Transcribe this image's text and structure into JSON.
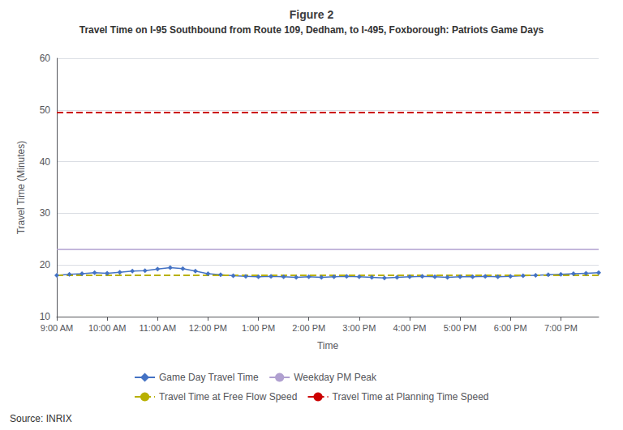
{
  "chart_data": {
    "type": "line",
    "title": "Figure 2",
    "subtitle": "Travel Time on I-95 Southbound from Route 109, Dedham, to I-495, Foxborough: Patriots Game Days",
    "x_label": "Time",
    "y_label": "Travel Time (Minutes)",
    "annotations": [
      "Source: INRIX"
    ],
    "categories": [
      "9:00 AM",
      null,
      null,
      null,
      "10:00 AM",
      null,
      null,
      null,
      "11:00 AM",
      null,
      null,
      null,
      "12:00 PM",
      null,
      null,
      null,
      "1:00 PM",
      null,
      null,
      null,
      "2:00 PM",
      null,
      null,
      null,
      "3:00 PM",
      null,
      null,
      null,
      "4:00 PM",
      null,
      null,
      null,
      "5:00 PM",
      null,
      null,
      null,
      "6:00 PM",
      null,
      null,
      null,
      "7:00 PM",
      null,
      null,
      null
    ],
    "series": [
      {
        "name": "Game Day Travel Time",
        "color": "#4472C4",
        "marker": "diamond",
        "line_style": "solid",
        "values": [
          18.0,
          18.2,
          18.3,
          18.5,
          18.4,
          18.6,
          18.8,
          18.9,
          19.2,
          19.5,
          19.3,
          18.8,
          18.3,
          18.1,
          17.9,
          17.8,
          17.7,
          17.8,
          17.7,
          17.6,
          17.7,
          17.6,
          17.7,
          17.8,
          17.7,
          17.6,
          17.5,
          17.6,
          17.7,
          17.8,
          17.7,
          17.6,
          17.7,
          17.7,
          17.8,
          17.7,
          17.8,
          17.9,
          18.0,
          18.1,
          18.2,
          18.3,
          18.4,
          18.5
        ]
      },
      {
        "name": "Weekday PM Peak",
        "color": "#B0A0D0",
        "line_style": "solid",
        "values": [
          23.0,
          23.0,
          23.0,
          23.0,
          23.0,
          23.0,
          23.0,
          23.0,
          23.0,
          23.0,
          23.0,
          23.0,
          23.0,
          23.0,
          23.0,
          23.0,
          23.0,
          23.0,
          23.0,
          23.0,
          23.0,
          23.0,
          23.0,
          23.0,
          23.0,
          23.0,
          23.0,
          23.0,
          23.0,
          23.0,
          23.0,
          23.0,
          23.0,
          23.0,
          23.0,
          23.0,
          23.0,
          23.0,
          23.0,
          23.0,
          23.0,
          23.0,
          23.0,
          23.0
        ]
      },
      {
        "name": "Travel Time at Free Flow Speed",
        "color": "#B8B000",
        "line_style": "dashed",
        "values": [
          18.0,
          18.0,
          18.0,
          18.0,
          18.0,
          18.0,
          18.0,
          18.0,
          18.0,
          18.0,
          18.0,
          18.0,
          18.0,
          18.0,
          18.0,
          18.0,
          18.0,
          18.0,
          18.0,
          18.0,
          18.0,
          18.0,
          18.0,
          18.0,
          18.0,
          18.0,
          18.0,
          18.0,
          18.0,
          18.0,
          18.0,
          18.0,
          18.0,
          18.0,
          18.0,
          18.0,
          18.0,
          18.0,
          18.0,
          18.0,
          18.0,
          18.0,
          18.0,
          18.0
        ]
      },
      {
        "name": "Travel Time at Planning Time Speed",
        "color": "#CC0000",
        "line_style": "dashed",
        "values": [
          49.5,
          49.5,
          49.5,
          49.5,
          49.5,
          49.5,
          49.5,
          49.5,
          49.5,
          49.5,
          49.5,
          49.5,
          49.5,
          49.5,
          49.5,
          49.5,
          49.5,
          49.5,
          49.5,
          49.5,
          49.5,
          49.5,
          49.5,
          49.5,
          49.5,
          49.5,
          49.5,
          49.5,
          49.5,
          49.5,
          49.5,
          49.5,
          49.5,
          49.5,
          49.5,
          49.5,
          49.5,
          49.5,
          49.5,
          49.5,
          49.5,
          49.5,
          49.5,
          49.5
        ]
      }
    ],
    "ylim": [
      10,
      60
    ],
    "yticks": [
      10,
      20,
      30,
      40,
      50,
      60
    ],
    "grid": true,
    "legend": "bottom"
  }
}
